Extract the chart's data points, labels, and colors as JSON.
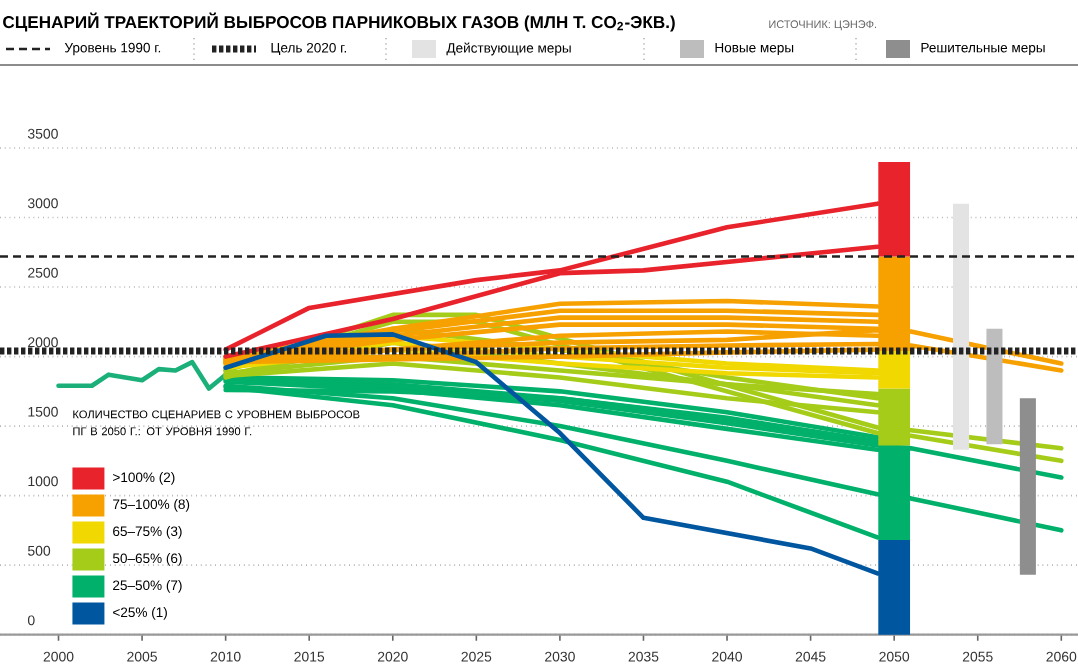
{
  "chart_data": {
    "type": "line",
    "title": "СЦЕНАРИЙ ТРАЕКТОРИЙ ВЫБРОСОВ ПАРНИКОВЫХ ГАЗОВ (МЛН Т. CO$_{2}$-ЭКВ.)",
    "annotations": [
      "ИСТОЧНИК: ЦЭНЭФ."
    ],
    "legend_title": "КОЛИЧЕСТВО СЦЕНАРИЕВ С УРОВНЕМ ВЫБРОСОВ ПГ В 2050 Г.: ОТ УРОВНЯ 1990 Г.",
    "legend": "top",
    "grid": "y",
    "xlim": [
      1996.5,
      2061
    ],
    "xticks": [
      2000,
      2005,
      2010,
      2015,
      2020,
      2025,
      2030,
      2035,
      2040,
      2045,
      2050,
      2055,
      2060
    ],
    "ylim": [
      0,
      3500
    ],
    "yticks": [
      0,
      500,
      1000,
      1500,
      2000,
      2500,
      3000,
      3500
    ],
    "ref_lines": [
      {
        "axis": "y",
        "value": 2720,
        "label": "Уровень 1990 г.",
        "color": "#222222",
        "line_style": "dashed"
      },
      {
        "axis": "y",
        "value": 2040,
        "label": "Цель 2020 г.",
        "color": "#222222",
        "line_style": "dotted"
      }
    ],
    "series": [
      {
        "color": "#1bb07a",
        "x": [
          2000,
          2002,
          2003,
          2005,
          2006,
          2007,
          2008,
          2009,
          2010
        ],
        "values": [
          1790,
          1790,
          1870,
          1830,
          1910,
          1900,
          1960,
          1770,
          1870
        ]
      },
      {
        "color": "#00b06b",
        "x": [
          2010,
          2020,
          2030,
          2040,
          2049
        ],
        "values": [
          1850,
          1830,
          1750,
          1600,
          1420
        ]
      },
      {
        "color": "#00b06b",
        "x": [
          2010,
          2020,
          2030,
          2040,
          2049
        ],
        "values": [
          1840,
          1800,
          1700,
          1550,
          1380
        ]
      },
      {
        "color": "#00b06b",
        "x": [
          2010,
          2020,
          2030,
          2040,
          2049,
          2051,
          2060
        ],
        "values": [
          1830,
          1780,
          1680,
          1520,
          1360,
          1340,
          1130
        ]
      },
      {
        "color": "#00b06b",
        "x": [
          2010,
          2020,
          2030,
          2040,
          2049
        ],
        "values": [
          1820,
          1760,
          1650,
          1480,
          1330
        ]
      },
      {
        "color": "#00b06b",
        "x": [
          2010,
          2020,
          2030,
          2040,
          2049,
          2051,
          2060
        ],
        "values": [
          1790,
          1700,
          1500,
          1250,
          1010,
          980,
          750
        ]
      },
      {
        "color": "#00b06b",
        "x": [
          2010,
          2020,
          2030,
          2040,
          2049
        ],
        "values": [
          1780,
          1650,
          1400,
          1100,
          700
        ]
      },
      {
        "color": "#00b06b",
        "x": [
          2010,
          2020,
          2030,
          2040,
          2049
        ],
        "values": [
          1760,
          1750,
          1700,
          1560,
          1390
        ]
      },
      {
        "color": "#a6cc1a",
        "x": [
          2010,
          2020,
          2025,
          2049,
          2051,
          2060
        ],
        "values": [
          1900,
          2300,
          2300,
          1490,
          1470,
          1340
        ]
      },
      {
        "color": "#a6cc1a",
        "x": [
          2010,
          2020,
          2025,
          2049,
          2051,
          2060
        ],
        "values": [
          1900,
          2250,
          2250,
          1450,
          1430,
          1250
        ]
      },
      {
        "color": "#a6cc1a",
        "x": [
          2010,
          2020,
          2030,
          2040,
          2049
        ],
        "values": [
          1880,
          2000,
          1900,
          1800,
          1730
        ]
      },
      {
        "color": "#a6cc1a",
        "x": [
          2010,
          2020,
          2030,
          2040,
          2049
        ],
        "values": [
          1850,
          2200,
          2050,
          1850,
          1700
        ]
      },
      {
        "color": "#a6cc1a",
        "x": [
          2010,
          2020,
          2030,
          2040,
          2049
        ],
        "values": [
          1870,
          2100,
          1950,
          1800,
          1650
        ]
      },
      {
        "color": "#a6cc1a",
        "x": [
          2010,
          2020,
          2030,
          2040,
          2049
        ],
        "values": [
          1860,
          1950,
          1850,
          1700,
          1600
        ]
      },
      {
        "color": "#f0d800",
        "x": [
          2010,
          2020,
          2030,
          2040,
          2049
        ],
        "values": [
          1960,
          2150,
          2050,
          1950,
          1900
        ]
      },
      {
        "color": "#f0d800",
        "x": [
          2010,
          2020,
          2030,
          2040,
          2049
        ],
        "values": [
          1940,
          2100,
          2000,
          1920,
          1880
        ]
      },
      {
        "color": "#f0d800",
        "x": [
          2010,
          2020,
          2030,
          2040,
          2049
        ],
        "values": [
          1920,
          2050,
          1950,
          1880,
          1850
        ]
      },
      {
        "color": "#f7a100",
        "x": [
          2010,
          2020,
          2030,
          2040,
          2049
        ],
        "values": [
          1990,
          2200,
          2380,
          2400,
          2360
        ]
      },
      {
        "color": "#f7a100",
        "x": [
          2010,
          2020,
          2030,
          2040,
          2049
        ],
        "values": [
          1980,
          2180,
          2330,
          2330,
          2300
        ]
      },
      {
        "color": "#f7a100",
        "x": [
          2010,
          2020,
          2030,
          2040,
          2049
        ],
        "values": [
          1970,
          2150,
          2280,
          2280,
          2250
        ]
      },
      {
        "color": "#f7a100",
        "x": [
          2010,
          2020,
          2030,
          2040,
          2049
        ],
        "values": [
          1960,
          2120,
          2230,
          2230,
          2200
        ]
      },
      {
        "color": "#f7a100",
        "x": [
          2010,
          2020,
          2030,
          2040,
          2049
        ],
        "values": [
          1950,
          2050,
          2150,
          2180,
          2150
        ]
      },
      {
        "color": "#f7a100",
        "x": [
          2010,
          2020,
          2030,
          2040,
          2049,
          2051,
          2060
        ],
        "values": [
          2000,
          2050,
          2100,
          2120,
          2190,
          2180,
          1950
        ]
      },
      {
        "color": "#f7a100",
        "x": [
          2010,
          2020,
          2030,
          2040,
          2049,
          2051,
          2060
        ],
        "values": [
          1980,
          2000,
          2060,
          2080,
          2090,
          2080,
          1900
        ]
      },
      {
        "color": "#f7a100",
        "x": [
          2010,
          2020,
          2030,
          2040,
          2049
        ],
        "values": [
          1960,
          1980,
          2000,
          2030,
          2050
        ]
      },
      {
        "color": "#e8232b",
        "x": [
          2010,
          2015,
          2025,
          2030,
          2040,
          2049
        ],
        "values": [
          2050,
          2350,
          2550,
          2620,
          2930,
          3100
        ]
      },
      {
        "color": "#e8232b",
        "x": [
          2010,
          2020,
          2030,
          2035,
          2049
        ],
        "values": [
          2000,
          2270,
          2600,
          2620,
          2790
        ]
      },
      {
        "color": "#0057a0",
        "x": [
          2010,
          2016,
          2020,
          2025,
          2030,
          2035,
          2045,
          2049
        ],
        "values": [
          1920,
          2150,
          2160,
          1960,
          1450,
          840,
          620,
          440
        ]
      },
      {
        "type": "bar",
        "name": "<25% (1)",
        "color": "#0057a0",
        "x": [
          2050
        ],
        "base": [
          0
        ],
        "values": [
          680
        ]
      },
      {
        "type": "bar",
        "name": "25–50% (7)",
        "color": "#00b06b",
        "x": [
          2050
        ],
        "base": [
          680
        ],
        "values": [
          680
        ]
      },
      {
        "type": "bar",
        "name": "50–65% (6)",
        "color": "#a6cc1a",
        "x": [
          2050
        ],
        "base": [
          1360
        ],
        "values": [
          410
        ]
      },
      {
        "type": "bar",
        "name": "65–75% (3)",
        "color": "#f0d800",
        "x": [
          2050
        ],
        "base": [
          1770
        ],
        "values": [
          270
        ]
      },
      {
        "type": "bar",
        "name": "75–100% (8)",
        "color": "#f7a100",
        "x": [
          2050
        ],
        "base": [
          2040
        ],
        "values": [
          680
        ]
      },
      {
        "type": "bar",
        "name": ">100% (2)",
        "color": "#e8232b",
        "x": [
          2050
        ],
        "base": [
          2720
        ],
        "values": [
          680
        ]
      },
      {
        "type": "bar",
        "name": "Действующие меры",
        "color": "#e3e3e3",
        "x": [
          2054
        ],
        "base": [
          1330
        ],
        "values": [
          1770
        ]
      },
      {
        "type": "bar",
        "name": "Новые меры",
        "color": "#bdbdbd",
        "x": [
          2056
        ],
        "base": [
          1370
        ],
        "values": [
          830
        ]
      },
      {
        "type": "bar",
        "name": "Решительные меры",
        "color": "#8e8e8e",
        "x": [
          2058
        ],
        "base": [
          430
        ],
        "values": [
          1270
        ]
      }
    ]
  }
}
